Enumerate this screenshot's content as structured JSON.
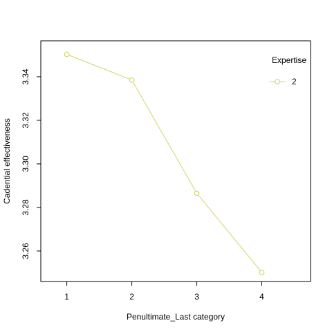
{
  "chart_data": {
    "type": "line",
    "title": "",
    "xlabel": "Penultimate_Last category",
    "ylabel": "Cadential effectiveness",
    "x": [
      1,
      2,
      3,
      4
    ],
    "xticks": [
      "1",
      "2",
      "3",
      "4"
    ],
    "xlim": [
      0.6,
      4.75
    ],
    "yticks": [
      "3.26",
      "3.28",
      "3.30",
      "3.32",
      "3.34"
    ],
    "ylim": [
      3.246,
      3.3565
    ],
    "series": [
      {
        "name": "2",
        "values": [
          3.3503,
          3.3385,
          3.2865,
          3.2502
        ],
        "color": "#cdcd4f"
      }
    ],
    "legend": {
      "title": "Expertise",
      "placement": "top-right",
      "marker": "open-circle"
    },
    "grid": false,
    "colors": {
      "axis": "#000000",
      "line": "#d3d36a",
      "marker": "#cdcd4f"
    }
  }
}
